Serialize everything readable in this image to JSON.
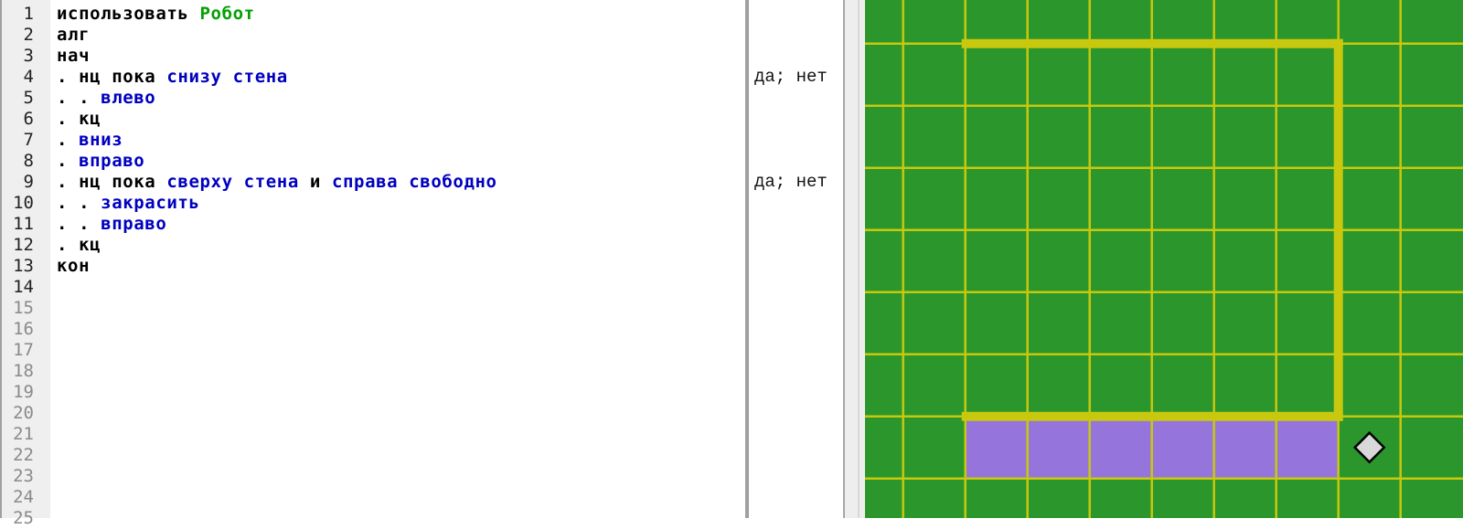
{
  "colors": {
    "keyword": "#000000",
    "command": "#0000c0",
    "library": "#00a000",
    "field_bg": "#2a962b",
    "grid": "#c8c80e",
    "wall": "#c8c80e",
    "painted": "#9575dc",
    "robot_fill": "#d8d8d8",
    "robot_stroke": "#000000"
  },
  "editor": {
    "line_numbers": [
      "1",
      "2",
      "3",
      "4",
      "5",
      "6",
      "7",
      "8",
      "9",
      "10",
      "11",
      "12",
      "13",
      "14",
      "15",
      "16",
      "17",
      "18",
      "19",
      "20",
      "21",
      "22",
      "23",
      "24",
      "25"
    ],
    "active_line_count": 14,
    "lines": [
      [
        {
          "t": "использовать ",
          "c": "keyword"
        },
        {
          "t": "Робот",
          "c": "library"
        }
      ],
      [
        {
          "t": "алг",
          "c": "keyword"
        }
      ],
      [
        {
          "t": "нач",
          "c": "keyword"
        }
      ],
      [
        {
          "t": ". нц пока ",
          "c": "keyword"
        },
        {
          "t": "снизу стена",
          "c": "command"
        }
      ],
      [
        {
          "t": ". . ",
          "c": "keyword"
        },
        {
          "t": "влево",
          "c": "command"
        }
      ],
      [
        {
          "t": ". кц",
          "c": "keyword"
        }
      ],
      [
        {
          "t": ". ",
          "c": "keyword"
        },
        {
          "t": "вниз",
          "c": "command"
        }
      ],
      [
        {
          "t": ". ",
          "c": "keyword"
        },
        {
          "t": "вправо",
          "c": "command"
        }
      ],
      [
        {
          "t": ". нц пока ",
          "c": "keyword"
        },
        {
          "t": "сверху стена",
          "c": "command"
        },
        {
          "t": " и ",
          "c": "keyword"
        },
        {
          "t": "справа свободно",
          "c": "command"
        }
      ],
      [
        {
          "t": ". . ",
          "c": "keyword"
        },
        {
          "t": "закрасить",
          "c": "command"
        }
      ],
      [
        {
          "t": ". . ",
          "c": "keyword"
        },
        {
          "t": "вправо",
          "c": "command"
        }
      ],
      [
        {
          "t": ". кц",
          "c": "keyword"
        }
      ],
      [
        {
          "t": "кон",
          "c": "keyword"
        }
      ]
    ]
  },
  "margin": {
    "notes": [
      {
        "line": 4,
        "text": "да; нет"
      },
      {
        "line": 9,
        "text": "да; нет"
      }
    ]
  },
  "robot_field": {
    "walls": [
      {
        "type": "horizontal",
        "row_boundary": 1,
        "from_col": 2,
        "to_col": 8
      },
      {
        "type": "vertical",
        "col_boundary": 8,
        "from_row": 1,
        "to_row": 7
      },
      {
        "type": "horizontal",
        "row_boundary": 7,
        "from_col": 2,
        "to_col": 8
      }
    ],
    "painted_cells": [
      [
        7,
        2
      ],
      [
        7,
        3
      ],
      [
        7,
        4
      ],
      [
        7,
        5
      ],
      [
        7,
        6
      ],
      [
        7,
        7
      ]
    ],
    "robot": {
      "row": 7,
      "col": 8
    }
  }
}
